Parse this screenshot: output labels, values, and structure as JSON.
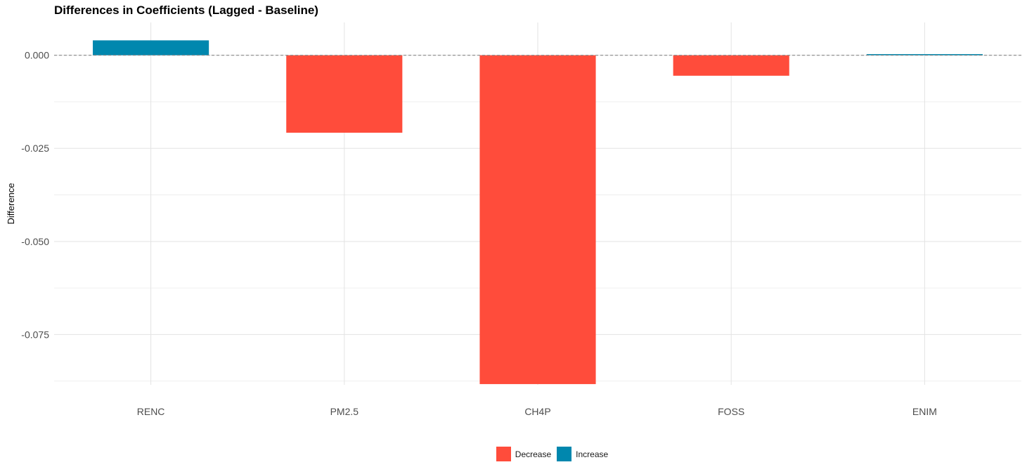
{
  "chart_data": {
    "type": "bar",
    "title": "Differences in Coefficients (Lagged - Baseline)",
    "xlabel": "",
    "ylabel": "Difference",
    "categories": [
      "RENC",
      "PM2.5",
      "CH4P",
      "FOSS",
      "ENIM"
    ],
    "values": [
      0.004,
      -0.0208,
      -0.0883,
      -0.0055,
      0.0003
    ],
    "fill_group": [
      "Increase",
      "Decrease",
      "Decrease",
      "Decrease",
      "Increase"
    ],
    "ylim": [
      -0.0885,
      0.0088
    ],
    "yticks": [
      0.0,
      -0.025,
      -0.05,
      -0.075
    ],
    "ytick_labels": [
      "0.000",
      "-0.025",
      "-0.050",
      "-0.075"
    ],
    "reference_line": 0,
    "grid": true,
    "legend": {
      "position": "bottom",
      "entries": [
        {
          "label": "Decrease",
          "color": "#FF4C3B"
        },
        {
          "label": "Increase",
          "color": "#0087AE"
        }
      ]
    },
    "colors": {
      "Decrease": "#FF4C3B",
      "Increase": "#0087AE"
    }
  }
}
